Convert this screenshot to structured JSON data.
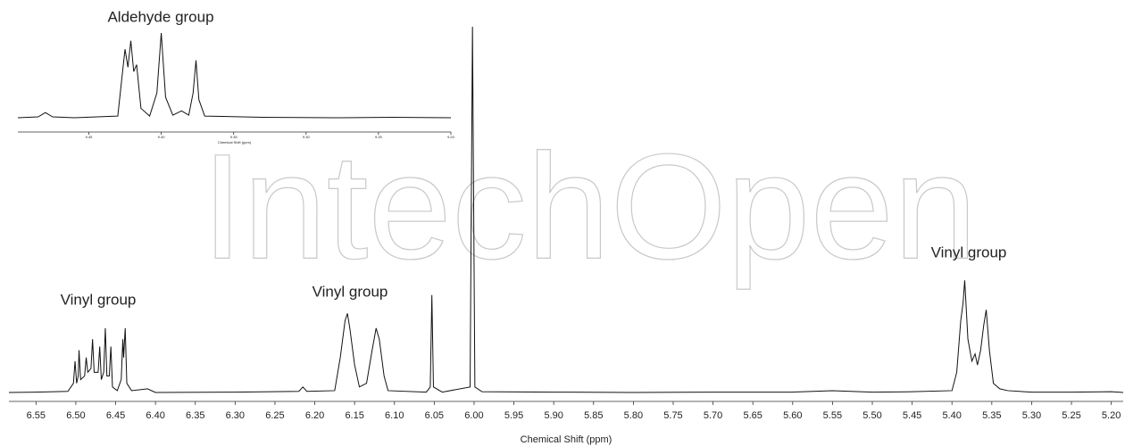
{
  "watermark": "IntechOpen",
  "chart_data": [
    {
      "type": "line",
      "xlabel": "Chemical Shift (ppm)",
      "color": "#111111",
      "annotations": [
        "Vinyl group",
        "Vinyl group",
        "Vinyl group"
      ],
      "xlim": [
        6.584,
        5.185
      ],
      "xticks": [
        6.55,
        {
          "value": 6.5,
          "label": "6.50"
        },
        6.45,
        {
          "value": 6.4,
          "label": "6.40"
        },
        6.35,
        {
          "value": 6.3,
          "label": "6.30"
        },
        6.25,
        {
          "value": 6.2,
          "label": "6.20"
        },
        6.15,
        {
          "value": 6.1,
          "label": "6.10"
        },
        6.05,
        {
          "value": 6.0,
          "label": "6.00"
        },
        5.95,
        {
          "value": 5.9,
          "label": "5.90"
        },
        5.85,
        {
          "value": 5.8,
          "label": "5.80"
        },
        5.75,
        {
          "value": 5.7,
          "label": "5.70"
        },
        5.65,
        {
          "value": 5.6,
          "label": "5.60"
        },
        5.55,
        {
          "value": 5.5,
          "label": "5.50"
        },
        5.45,
        {
          "value": 5.4,
          "label": "5.40"
        },
        5.35,
        {
          "value": 5.3,
          "label": "5.30"
        },
        5.25,
        {
          "value": 5.2,
          "label": "5.20"
        }
      ],
      "x": [
        6.584,
        6.55,
        6.51,
        6.503,
        6.501,
        6.499,
        6.497,
        6.496,
        6.494,
        6.489,
        6.487,
        6.485,
        6.481,
        6.479,
        6.477,
        6.472,
        6.47,
        6.468,
        6.465,
        6.463,
        6.461,
        6.458,
        6.456,
        6.454,
        6.448,
        6.443,
        6.441,
        6.44,
        6.438,
        6.436,
        6.43,
        6.41,
        6.4,
        6.3,
        6.22,
        6.215,
        6.21,
        6.175,
        6.168,
        6.162,
        6.159,
        6.156,
        6.15,
        6.144,
        6.135,
        6.128,
        6.123,
        6.119,
        6.113,
        6.108,
        6.06,
        6.055,
        6.053,
        6.051,
        6.04,
        6.005,
        6.002,
        5.999,
        5.99,
        5.9,
        5.8,
        5.7,
        5.6,
        5.55,
        5.5,
        5.45,
        5.4,
        5.394,
        5.389,
        5.386,
        5.384,
        5.38,
        5.375,
        5.371,
        5.368,
        5.364,
        5.36,
        5.357,
        5.353,
        5.348,
        5.34,
        5.33,
        5.3,
        5.25,
        5.2,
        5.185
      ],
      "values": [
        0.5,
        0.6,
        0.8,
        3,
        9,
        3,
        5,
        12,
        4,
        5,
        10,
        6,
        7,
        15,
        6,
        6,
        13,
        4,
        6,
        18,
        5,
        5,
        13,
        2,
        1,
        4,
        15,
        10,
        18,
        3,
        1,
        1.5,
        0.5,
        0.6,
        0.8,
        2,
        0.8,
        1,
        10,
        20,
        22,
        18,
        8,
        2,
        3,
        12,
        18,
        15,
        5,
        1,
        0.6,
        2,
        27,
        2,
        0.6,
        2,
        100,
        2,
        0.7,
        0.6,
        0.5,
        0.6,
        0.6,
        1,
        0.6,
        0.7,
        1,
        6,
        20,
        25,
        31,
        15,
        9,
        11,
        8,
        12,
        19,
        23,
        12,
        3,
        1.5,
        1,
        0.6,
        0.6,
        0.7,
        0.5
      ]
    },
    {
      "type": "line",
      "title": "Aldehyde group",
      "xlabel": "Chemical Shift (ppm)",
      "color": "#111111",
      "xlim": [
        9.499,
        9.2
      ],
      "xticks": [
        9.45,
        {
          "value": 9.4,
          "label": "9.40"
        },
        9.35,
        {
          "value": 9.3,
          "label": "9.30"
        },
        9.25,
        {
          "value": 9.2,
          "label": "9.20"
        }
      ],
      "x": [
        9.499,
        9.485,
        9.48,
        9.475,
        9.46,
        9.43,
        9.427,
        9.425,
        9.423,
        9.421,
        9.419,
        9.417,
        9.414,
        9.408,
        9.403,
        9.4,
        9.397,
        9.392,
        9.386,
        9.381,
        9.378,
        9.376,
        9.374,
        9.37,
        9.33,
        9.28,
        9.24,
        9.2
      ],
      "values": [
        1,
        2,
        7,
        2,
        1,
        3,
        50,
        81,
        60,
        91,
        55,
        63,
        12,
        3,
        30,
        100,
        25,
        4,
        9,
        4,
        30,
        68,
        22,
        3,
        1.5,
        1,
        1.5,
        1
      ]
    }
  ]
}
